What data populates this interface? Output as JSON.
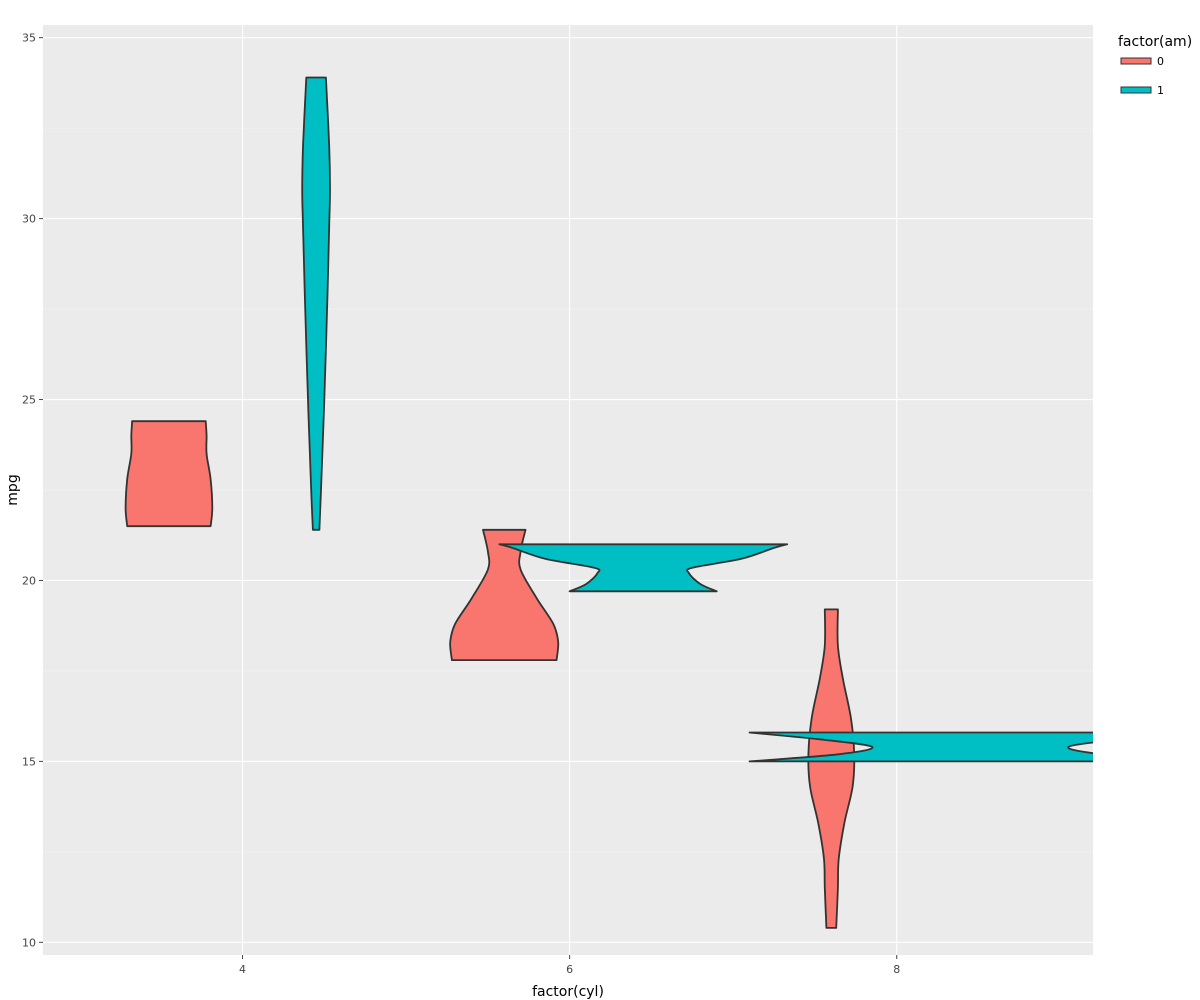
{
  "chart_data": {
    "type": "violin",
    "xlabel": "factor(cyl)",
    "ylabel": "mpg",
    "ylim": [
      9.65,
      35.35
    ],
    "y_ticks": [
      10,
      15,
      20,
      25,
      30,
      35
    ],
    "x_ticks": [
      {
        "label": "4",
        "value": 4
      },
      {
        "label": "6",
        "value": 6
      },
      {
        "label": "8",
        "value": 8
      }
    ],
    "x_range": [
      2.78,
      9.2
    ],
    "grid": true,
    "legend": {
      "title": "factor(am)",
      "position": "right",
      "entries": [
        {
          "label": "0",
          "color": "#F8766D"
        },
        {
          "label": "1",
          "color": "#00BFC4"
        }
      ]
    },
    "colors": {
      "panel": "#EBEBEB",
      "grid": "#FFFFFF",
      "outline": "#333333"
    },
    "series": [
      {
        "am": "0",
        "color": "#F8766D",
        "center": 3.55,
        "halfwidth": [
          [
            21.5,
            0.255
          ],
          [
            22.0,
            0.265
          ],
          [
            22.8,
            0.255
          ],
          [
            23.5,
            0.23
          ],
          [
            24.0,
            0.23
          ],
          [
            24.4,
            0.225
          ]
        ]
      },
      {
        "am": "1",
        "color": "#00BFC4",
        "center": 4.45,
        "halfwidth": [
          [
            21.4,
            0.02
          ],
          [
            22.5,
            0.03
          ],
          [
            25.0,
            0.05
          ],
          [
            28.0,
            0.07
          ],
          [
            29.8,
            0.08
          ],
          [
            30.8,
            0.085
          ],
          [
            32.0,
            0.08
          ],
          [
            33.9,
            0.06
          ]
        ]
      },
      {
        "am": "0",
        "color": "#F8766D",
        "center": 5.6,
        "halfwidth": [
          [
            17.8,
            0.32
          ],
          [
            18.3,
            0.33
          ],
          [
            18.8,
            0.3
          ],
          [
            19.5,
            0.2
          ],
          [
            20.3,
            0.1
          ],
          [
            20.8,
            0.1
          ],
          [
            21.4,
            0.13
          ]
        ]
      },
      {
        "am": "1",
        "color": "#00BFC4",
        "center": 6.45,
        "halfwidth": [
          [
            19.7,
            0.45
          ],
          [
            19.9,
            0.35
          ],
          [
            20.2,
            0.28
          ],
          [
            20.35,
            0.3
          ],
          [
            20.6,
            0.6
          ],
          [
            20.9,
            0.8
          ],
          [
            21.0,
            0.88
          ]
        ]
      },
      {
        "am": "0",
        "color": "#F8766D",
        "center": 7.6,
        "halfwidth": [
          [
            10.4,
            0.03
          ],
          [
            11.5,
            0.04
          ],
          [
            12.3,
            0.045
          ],
          [
            13.3,
            0.08
          ],
          [
            14.3,
            0.13
          ],
          [
            15.2,
            0.14
          ],
          [
            16.2,
            0.12
          ],
          [
            17.3,
            0.07
          ],
          [
            18.2,
            0.04
          ],
          [
            19.2,
            0.04
          ]
        ]
      },
      {
        "am": "1",
        "color": "#00BFC4",
        "center": 8.45,
        "halfwidth": [
          [
            15.0,
            1.35
          ],
          [
            15.2,
            0.8
          ],
          [
            15.4,
            0.6
          ],
          [
            15.6,
            0.9
          ],
          [
            15.8,
            1.35
          ]
        ]
      }
    ]
  }
}
